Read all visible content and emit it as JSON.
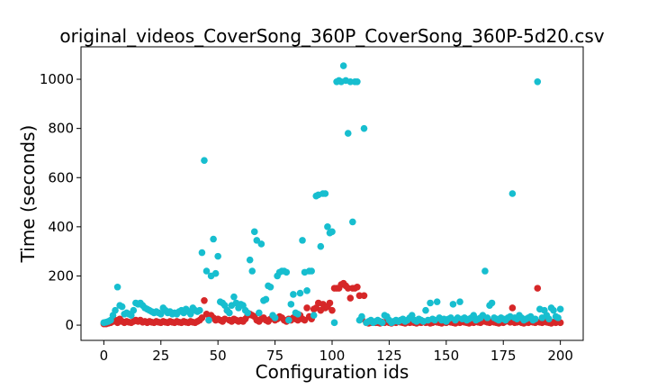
{
  "chart_data": {
    "type": "scatter",
    "title": "original_videos_CoverSong_360P_CoverSong_360P-5d20.csv",
    "x_label": "Configuration ids",
    "y_label": "Time (seconds)",
    "xlim": [
      -10,
      210
    ],
    "ylim": [
      -62,
      1132
    ],
    "xticks": [
      0,
      25,
      50,
      75,
      100,
      125,
      150,
      175,
      200
    ],
    "yticks": [
      0,
      200,
      400,
      600,
      800,
      1000
    ],
    "grid": false,
    "x": [
      0,
      1,
      2,
      3,
      4,
      5,
      6,
      7,
      8,
      9,
      10,
      11,
      12,
      13,
      14,
      15,
      16,
      17,
      18,
      19,
      20,
      21,
      22,
      23,
      24,
      25,
      26,
      27,
      28,
      29,
      30,
      31,
      32,
      33,
      34,
      35,
      36,
      37,
      38,
      39,
      40,
      41,
      42,
      43,
      44,
      45,
      46,
      47,
      48,
      49,
      50,
      51,
      52,
      53,
      54,
      55,
      56,
      57,
      58,
      59,
      60,
      61,
      62,
      63,
      64,
      65,
      66,
      67,
      68,
      69,
      70,
      71,
      72,
      73,
      74,
      75,
      76,
      77,
      78,
      79,
      80,
      81,
      82,
      83,
      84,
      85,
      86,
      87,
      88,
      89,
      90,
      91,
      92,
      93,
      94,
      95,
      96,
      97,
      98,
      99,
      100,
      101,
      102,
      103,
      104,
      105,
      106,
      107,
      108,
      109,
      110,
      111,
      112,
      113,
      114,
      115,
      116,
      117,
      118,
      119,
      120,
      121,
      122,
      123,
      124,
      125,
      126,
      127,
      128,
      129,
      130,
      131,
      132,
      133,
      134,
      135,
      136,
      137,
      138,
      139,
      140,
      141,
      142,
      143,
      144,
      145,
      146,
      147,
      148,
      149,
      150,
      151,
      152,
      153,
      154,
      155,
      156,
      157,
      158,
      159,
      160,
      161,
      162,
      163,
      164,
      165,
      166,
      167,
      168,
      169,
      170,
      171,
      172,
      173,
      174,
      175,
      176,
      177,
      178,
      179,
      180,
      181,
      182,
      183,
      184,
      185,
      186,
      187,
      188,
      189,
      190,
      191,
      192,
      193,
      194,
      195,
      196,
      197,
      198,
      199,
      200
    ],
    "series": [
      {
        "color": "#d62728",
        "values": [
          5,
          5,
          8,
          10,
          15,
          20,
          10,
          25,
          15,
          10,
          15,
          12,
          10,
          15,
          20,
          15,
          20,
          12,
          15,
          10,
          15,
          12,
          10,
          15,
          12,
          10,
          15,
          12,
          10,
          15,
          12,
          10,
          15,
          12,
          10,
          15,
          12,
          10,
          15,
          12,
          10,
          15,
          20,
          30,
          100,
          45,
          20,
          40,
          30,
          20,
          25,
          20,
          15,
          25,
          60,
          20,
          15,
          25,
          20,
          15,
          20,
          15,
          25,
          40,
          45,
          40,
          35,
          20,
          15,
          25,
          30,
          20,
          15,
          25,
          30,
          20,
          25,
          35,
          30,
          20,
          15,
          25,
          20,
          30,
          25,
          20,
          40,
          25,
          20,
          70,
          35,
          25,
          65,
          70,
          90,
          60,
          85,
          70,
          75,
          90,
          60,
          150,
          150,
          150,
          165,
          170,
          160,
          150,
          110,
          150,
          150,
          155,
          120,
          25,
          120,
          10,
          8,
          10,
          12,
          10,
          10,
          8,
          12,
          10,
          15,
          10,
          8,
          12,
          10,
          15,
          12,
          10,
          8,
          15,
          10,
          12,
          10,
          8,
          12,
          10,
          15,
          10,
          12,
          8,
          10,
          15,
          12,
          10,
          8,
          12,
          10,
          15,
          12,
          10,
          8,
          12,
          10,
          15,
          12,
          10,
          8,
          12,
          10,
          15,
          12,
          10,
          20,
          15,
          12,
          10,
          15,
          12,
          10,
          8,
          12,
          10,
          15,
          20,
          12,
          70,
          10,
          12,
          15,
          10,
          8,
          12,
          10,
          15,
          12,
          10,
          150,
          12,
          10,
          15,
          12,
          10,
          8,
          12,
          10,
          15,
          10
        ]
      },
      {
        "color": "#17becf",
        "values": [
          10,
          12,
          15,
          20,
          40,
          60,
          155,
          80,
          75,
          45,
          50,
          45,
          40,
          60,
          90,
          85,
          90,
          80,
          70,
          65,
          60,
          55,
          50,
          55,
          50,
          45,
          70,
          60,
          50,
          55,
          45,
          50,
          45,
          55,
          60,
          50,
          65,
          55,
          45,
          70,
          60,
          55,
          60,
          295,
          670,
          220,
          20,
          200,
          350,
          210,
          280,
          95,
          90,
          80,
          60,
          50,
          80,
          115,
          90,
          70,
          85,
          80,
          60,
          50,
          265,
          220,
          380,
          345,
          50,
          330,
          100,
          105,
          160,
          155,
          40,
          30,
          200,
          215,
          220,
          220,
          215,
          20,
          85,
          125,
          50,
          45,
          130,
          345,
          215,
          140,
          220,
          220,
          40,
          525,
          530,
          320,
          535,
          535,
          400,
          375,
          380,
          10,
          990,
          995,
          990,
          1055,
          995,
          780,
          990,
          420,
          990,
          990,
          20,
          35,
          800,
          10,
          15,
          20,
          10,
          15,
          20,
          15,
          10,
          40,
          35,
          20,
          10,
          15,
          20,
          15,
          20,
          25,
          15,
          20,
          30,
          40,
          20,
          15,
          25,
          20,
          15,
          60,
          20,
          90,
          25,
          20,
          95,
          30,
          20,
          25,
          15,
          25,
          30,
          85,
          20,
          30,
          95,
          25,
          30,
          20,
          25,
          30,
          40,
          20,
          25,
          30,
          40,
          220,
          30,
          80,
          90,
          30,
          25,
          20,
          30,
          25,
          20,
          30,
          35,
          535,
          30,
          25,
          40,
          30,
          20,
          25,
          30,
          35,
          20,
          25,
          990,
          65,
          30,
          60,
          40,
          25,
          70,
          60,
          35,
          30,
          65
        ]
      }
    ]
  }
}
